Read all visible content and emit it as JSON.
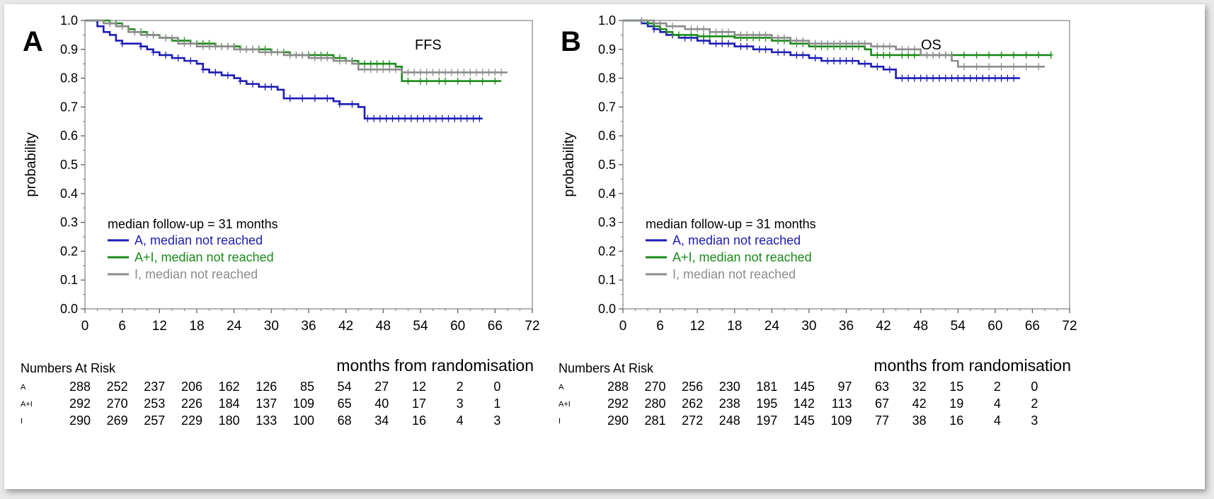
{
  "chart_data": [
    {
      "type": "line",
      "panel_letter": "A",
      "endpoint_label": "FFS",
      "xlabel": "months from randomisation",
      "ylabel": "probability",
      "xlim": [
        0,
        72
      ],
      "ylim": [
        0.0,
        1.0
      ],
      "x_ticks": [
        0,
        6,
        12,
        18,
        24,
        30,
        36,
        42,
        48,
        54,
        60,
        66,
        72
      ],
      "y_ticks": [
        0.0,
        0.1,
        0.2,
        0.3,
        0.4,
        0.5,
        0.6,
        0.7,
        0.8,
        0.9,
        1.0
      ],
      "grid": false,
      "legend_position": "bottom-left",
      "legend_title": "median follow-up =  31 months",
      "series": [
        {
          "name": "A, median not reached",
          "color": "#1c1cb4",
          "points": [
            [
              0,
              1.0
            ],
            [
              2,
              0.98
            ],
            [
              3,
              0.96
            ],
            [
              4,
              0.95
            ],
            [
              5,
              0.93
            ],
            [
              6,
              0.92
            ],
            [
              9,
              0.91
            ],
            [
              10,
              0.9
            ],
            [
              11,
              0.89
            ],
            [
              12,
              0.88
            ],
            [
              14,
              0.87
            ],
            [
              16,
              0.86
            ],
            [
              18,
              0.85
            ],
            [
              19,
              0.83
            ],
            [
              20,
              0.82
            ],
            [
              22,
              0.81
            ],
            [
              24,
              0.8
            ],
            [
              25,
              0.79
            ],
            [
              26,
              0.78
            ],
            [
              28,
              0.77
            ],
            [
              31,
              0.76
            ],
            [
              32,
              0.73
            ],
            [
              40,
              0.72
            ],
            [
              41,
              0.71
            ],
            [
              44,
              0.7
            ],
            [
              45,
              0.66
            ],
            [
              64,
              0.66
            ]
          ],
          "censor_x": [
            6,
            9,
            11,
            13,
            15,
            17,
            19,
            21,
            23,
            25,
            27,
            29,
            30,
            33,
            35,
            37,
            39,
            41,
            43,
            45.5,
            46.5,
            47.5,
            48.5,
            49.5,
            50.5,
            51.5,
            52.5,
            53.5,
            54.5,
            55.5,
            56.5,
            57.5,
            58.5,
            59.5,
            60.5,
            61.5,
            62.5,
            63.5
          ]
        },
        {
          "name": "A+I, median not reached",
          "color": "#1a8a1a",
          "points": [
            [
              0,
              1.0
            ],
            [
              4,
              0.99
            ],
            [
              6,
              0.98
            ],
            [
              7,
              0.97
            ],
            [
              8,
              0.96
            ],
            [
              10,
              0.95
            ],
            [
              12,
              0.94
            ],
            [
              14,
              0.93
            ],
            [
              17,
              0.92
            ],
            [
              21,
              0.91
            ],
            [
              25,
              0.9
            ],
            [
              30,
              0.89
            ],
            [
              33,
              0.88
            ],
            [
              40,
              0.87
            ],
            [
              42,
              0.86
            ],
            [
              44,
              0.85
            ],
            [
              50,
              0.84
            ],
            [
              51,
              0.79
            ],
            [
              67,
              0.79
            ]
          ],
          "censor_x": [
            5,
            9,
            11,
            13,
            15,
            16,
            18,
            19,
            20,
            22,
            23,
            24,
            26,
            27,
            28,
            29,
            31,
            32,
            34,
            35,
            36,
            37,
            38,
            39,
            41,
            43,
            45,
            46,
            47,
            48,
            49,
            52,
            54,
            55,
            57,
            58,
            60,
            62,
            64,
            66
          ]
        },
        {
          "name": "I, median not reached",
          "color": "#8c8c8c",
          "points": [
            [
              0,
              1.0
            ],
            [
              3,
              0.99
            ],
            [
              5,
              0.98
            ],
            [
              7,
              0.96
            ],
            [
              9,
              0.95
            ],
            [
              12,
              0.94
            ],
            [
              15,
              0.92
            ],
            [
              18,
              0.91
            ],
            [
              24,
              0.9
            ],
            [
              28,
              0.89
            ],
            [
              32,
              0.88
            ],
            [
              36,
              0.87
            ],
            [
              40,
              0.86
            ],
            [
              43,
              0.85
            ],
            [
              44,
              0.83
            ],
            [
              51,
              0.82
            ],
            [
              68,
              0.82
            ]
          ],
          "censor_x": [
            4,
            6,
            8,
            10,
            11,
            13,
            14,
            16,
            17,
            19,
            20,
            21,
            22,
            23,
            25,
            26,
            27,
            29,
            30,
            31,
            33,
            34,
            35,
            37,
            38,
            39,
            41,
            42,
            45,
            46,
            47,
            48,
            49,
            50,
            52,
            53,
            54,
            55,
            56,
            57,
            58,
            59,
            60,
            61,
            62,
            63,
            64,
            65,
            66,
            67
          ]
        }
      ],
      "at_risk": {
        "header": "Numbers At Risk",
        "rows": [
          {
            "label": "A",
            "values": [
              "288",
              "252",
              "237",
              "206",
              "162",
              "126",
              "85",
              "54",
              "27",
              "12",
              "2",
              "0"
            ]
          },
          {
            "label": "A+I",
            "values": [
              "292",
              "270",
              "253",
              "226",
              "184",
              "137",
              "109",
              "65",
              "40",
              "17",
              "3",
              "1"
            ]
          },
          {
            "label": "I",
            "values": [
              "290",
              "269",
              "257",
              "229",
              "180",
              "133",
              "100",
              "68",
              "34",
              "16",
              "4",
              "3"
            ]
          }
        ]
      }
    },
    {
      "type": "line",
      "panel_letter": "B",
      "endpoint_label": "OS",
      "xlabel": "months from randomisation",
      "ylabel": "probability",
      "xlim": [
        0,
        72
      ],
      "ylim": [
        0.0,
        1.0
      ],
      "x_ticks": [
        0,
        6,
        12,
        18,
        24,
        30,
        36,
        42,
        48,
        54,
        60,
        66,
        72
      ],
      "y_ticks": [
        0.0,
        0.1,
        0.2,
        0.3,
        0.4,
        0.5,
        0.6,
        0.7,
        0.8,
        0.9,
        1.0
      ],
      "grid": false,
      "legend_position": "bottom-left",
      "legend_title": "median follow-up =  31 months",
      "series": [
        {
          "name": "A, median not reached",
          "color": "#1c1cb4",
          "points": [
            [
              0,
              1.0
            ],
            [
              3,
              0.99
            ],
            [
              4,
              0.98
            ],
            [
              5,
              0.97
            ],
            [
              6,
              0.96
            ],
            [
              7,
              0.95
            ],
            [
              9,
              0.94
            ],
            [
              12,
              0.93
            ],
            [
              14,
              0.92
            ],
            [
              18,
              0.91
            ],
            [
              21,
              0.9
            ],
            [
              24,
              0.89
            ],
            [
              27,
              0.88
            ],
            [
              30,
              0.87
            ],
            [
              32,
              0.86
            ],
            [
              38,
              0.85
            ],
            [
              40,
              0.84
            ],
            [
              42,
              0.83
            ],
            [
              44,
              0.8
            ],
            [
              64,
              0.8
            ]
          ],
          "censor_x": [
            5,
            8,
            10,
            11,
            13,
            15,
            16,
            17,
            19,
            20,
            22,
            23,
            25,
            26,
            28,
            29,
            31,
            33,
            34,
            35,
            36,
            37,
            39,
            41,
            43,
            45,
            46,
            47,
            48,
            49,
            50,
            51,
            52,
            53,
            54,
            55,
            56,
            57,
            58,
            59,
            60,
            61,
            62,
            63
          ]
        },
        {
          "name": "A+I, median not reached",
          "color": "#1a8a1a",
          "points": [
            [
              0,
              1.0
            ],
            [
              4,
              0.99
            ],
            [
              5,
              0.98
            ],
            [
              6,
              0.97
            ],
            [
              7,
              0.96
            ],
            [
              8,
              0.95
            ],
            [
              12,
              0.945
            ],
            [
              18,
              0.94
            ],
            [
              24,
              0.93
            ],
            [
              27,
              0.92
            ],
            [
              30,
              0.91
            ],
            [
              39,
              0.9
            ],
            [
              40,
              0.88
            ],
            [
              69,
              0.88
            ]
          ],
          "censor_x": [
            9,
            11,
            13,
            14,
            16,
            19,
            20,
            21,
            22,
            23,
            25,
            26,
            28,
            29,
            31,
            32,
            33,
            34,
            35,
            36,
            37,
            38,
            41,
            42,
            43,
            45,
            46,
            47,
            49,
            50,
            51,
            52,
            53,
            55,
            57,
            59,
            61,
            63,
            65,
            67,
            69
          ]
        },
        {
          "name": "I, median not reached",
          "color": "#8c8c8c",
          "points": [
            [
              0,
              1.0
            ],
            [
              5,
              0.99
            ],
            [
              7,
              0.98
            ],
            [
              10,
              0.97
            ],
            [
              14,
              0.96
            ],
            [
              18,
              0.95
            ],
            [
              24,
              0.94
            ],
            [
              27,
              0.93
            ],
            [
              30,
              0.92
            ],
            [
              40,
              0.91
            ],
            [
              44,
              0.9
            ],
            [
              48,
              0.88
            ],
            [
              53,
              0.86
            ],
            [
              54,
              0.84
            ],
            [
              68,
              0.84
            ]
          ],
          "censor_x": [
            3,
            6,
            8,
            11,
            12,
            13,
            15,
            16,
            17,
            19,
            20,
            21,
            22,
            23,
            25,
            26,
            28,
            29,
            31,
            32,
            33,
            34,
            35,
            36,
            37,
            38,
            39,
            41,
            42,
            43,
            45,
            46,
            47,
            49,
            50,
            51,
            52,
            55,
            57,
            59,
            61,
            63,
            65,
            67
          ]
        }
      ],
      "at_risk": {
        "header": "Numbers At Risk",
        "rows": [
          {
            "label": "A",
            "values": [
              "288",
              "270",
              "256",
              "230",
              "181",
              "145",
              "97",
              "63",
              "32",
              "15",
              "2",
              "0"
            ]
          },
          {
            "label": "A+I",
            "values": [
              "292",
              "280",
              "262",
              "238",
              "195",
              "142",
              "113",
              "67",
              "42",
              "19",
              "4",
              "2"
            ]
          },
          {
            "label": "I",
            "values": [
              "290",
              "281",
              "272",
              "248",
              "197",
              "145",
              "109",
              "77",
              "38",
              "16",
              "4",
              "3"
            ]
          }
        ]
      }
    }
  ]
}
